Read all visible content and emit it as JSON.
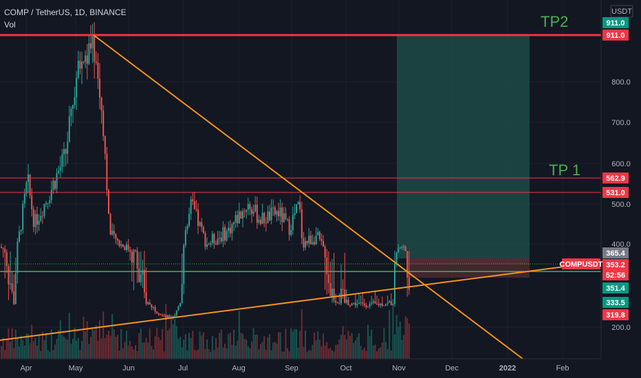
{
  "header": {
    "symbol_line": "COMP / TetherUS, 1D, BINANCE",
    "indicator": "Vol"
  },
  "price_axis": {
    "currency": "USDT",
    "ticks": [
      "800.0",
      "700.0",
      "600.0",
      "500.0",
      "400.0",
      "200.0"
    ]
  },
  "time_axis": {
    "ticks": [
      "Apr",
      "May",
      "Jun",
      "Jul",
      "Aug",
      "Sep",
      "Oct",
      "Nov",
      "Dec",
      "2022",
      "Jan",
      "Feb"
    ]
  },
  "annotations": {
    "tp2": "TP2",
    "tp1": "TP 1",
    "symbol_tag": "COMPUSDT"
  },
  "price_tags": [
    {
      "id": "tp2-top",
      "label": "911.0",
      "bg": "#089981",
      "fg": "#ffffff",
      "price": 911
    },
    {
      "id": "tp2-line",
      "label": "911.0",
      "bg": "#f23645",
      "fg": "#ffffff",
      "price": 911
    },
    {
      "id": "tp1-line",
      "label": "562.9",
      "bg": "#f23645",
      "fg": "#ffffff",
      "price": 562.9
    },
    {
      "id": "resistance",
      "label": "531.0",
      "bg": "#f23645",
      "fg": "#ffffff",
      "price": 531
    },
    {
      "id": "high",
      "label": "365.4",
      "bg": "#787b86",
      "fg": "#ffffff",
      "price": 365.4
    },
    {
      "id": "last",
      "label": "353.2",
      "bg": "#f23645",
      "fg": "#ffffff",
      "price": 353.2
    },
    {
      "id": "countdown",
      "label": "52:56",
      "bg": "#f23645",
      "fg": "#ffffff"
    },
    {
      "id": "entry",
      "label": "351.4",
      "bg": "#089981",
      "fg": "#ffffff",
      "price": 351.4
    },
    {
      "id": "support",
      "label": "333.5",
      "bg": "#089981",
      "fg": "#ffffff",
      "price": 333.5
    },
    {
      "id": "stop",
      "label": "319.8",
      "bg": "#f23645",
      "fg": "#ffffff",
      "price": 319.8
    }
  ],
  "colors": {
    "background": "#131722",
    "up": "#26a69a",
    "down": "#ef5350",
    "trendline": "#f7931a",
    "support_line": "#4caf50",
    "resistance_line": "#f23645",
    "target_zone": "#1d4a46",
    "stop_zone": "#4a2a30"
  },
  "chart_data": {
    "type": "candlestick",
    "symbol": "COMP / TetherUS",
    "timeframe": "1D",
    "exchange": "BINANCE",
    "series": [
      {
        "name": "price",
        "monthly_ohlc": [
          {
            "month": "Apr",
            "open": 390,
            "high": 580,
            "low": 330,
            "close": 450
          },
          {
            "month": "May",
            "open": 450,
            "high": 911,
            "low": 340,
            "close": 390
          },
          {
            "month": "Jun",
            "open": 390,
            "high": 460,
            "low": 220,
            "close": 330
          },
          {
            "month": "Jul",
            "open": 330,
            "high": 530,
            "low": 250,
            "close": 460
          },
          {
            "month": "Aug",
            "open": 460,
            "high": 530,
            "low": 380,
            "close": 480
          },
          {
            "month": "Sep",
            "open": 480,
            "high": 530,
            "low": 290,
            "close": 310
          },
          {
            "month": "Oct",
            "open": 310,
            "high": 350,
            "low": 280,
            "close": 330
          },
          {
            "month": "Nov",
            "open": 330,
            "high": 400,
            "low": 320,
            "close": 353.2
          }
        ]
      }
    ],
    "levels": {
      "tp2": 911.0,
      "tp1": 562.9,
      "resistance": 531.0,
      "entry": 351.4,
      "support": 333.5,
      "stop": 319.8,
      "last": 353.2
    }
  }
}
